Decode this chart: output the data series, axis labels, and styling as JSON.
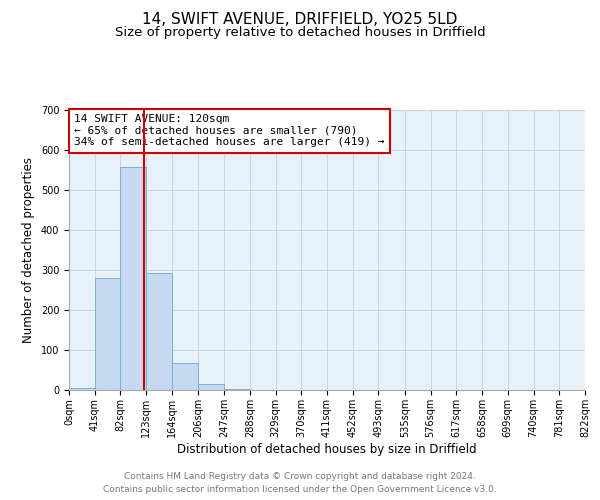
{
  "title": "14, SWIFT AVENUE, DRIFFIELD, YO25 5LD",
  "subtitle": "Size of property relative to detached houses in Driffield",
  "xlabel": "Distribution of detached houses by size in Driffield",
  "ylabel": "Number of detached properties",
  "bin_edges": [
    0,
    41,
    82,
    123,
    164,
    206,
    247,
    288,
    329,
    370,
    411,
    452,
    493,
    535,
    576,
    617,
    658,
    699,
    740,
    781,
    822
  ],
  "bin_labels": [
    "0sqm",
    "41sqm",
    "82sqm",
    "123sqm",
    "164sqm",
    "206sqm",
    "247sqm",
    "288sqm",
    "329sqm",
    "370sqm",
    "411sqm",
    "452sqm",
    "493sqm",
    "535sqm",
    "576sqm",
    "617sqm",
    "658sqm",
    "699sqm",
    "740sqm",
    "781sqm",
    "822sqm"
  ],
  "bar_heights": [
    5,
    280,
    557,
    292,
    68,
    14,
    3,
    0,
    0,
    0,
    0,
    0,
    0,
    0,
    0,
    0,
    0,
    0,
    0,
    0
  ],
  "bar_color": "#c5d9f0",
  "bar_edge_color": "#7bafd4",
  "vline_x": 120,
  "vline_color": "#cc0000",
  "ylim": [
    0,
    700
  ],
  "yticks": [
    0,
    100,
    200,
    300,
    400,
    500,
    600,
    700
  ],
  "annotation_title": "14 SWIFT AVENUE: 120sqm",
  "annotation_line1": "← 65% of detached houses are smaller (790)",
  "annotation_line2": "34% of semi-detached houses are larger (419) →",
  "annotation_box_color": "#ffffff",
  "annotation_box_edgecolor": "#cc0000",
  "footer1": "Contains HM Land Registry data © Crown copyright and database right 2024.",
  "footer2": "Contains public sector information licensed under the Open Government Licence v3.0.",
  "background_color": "#ffffff",
  "plot_bg_color": "#e8f0f8",
  "grid_color": "#c8d4e3",
  "title_fontsize": 11,
  "subtitle_fontsize": 9.5,
  "axis_label_fontsize": 8.5,
  "tick_fontsize": 7,
  "annotation_fontsize": 8,
  "footer_fontsize": 6.5
}
